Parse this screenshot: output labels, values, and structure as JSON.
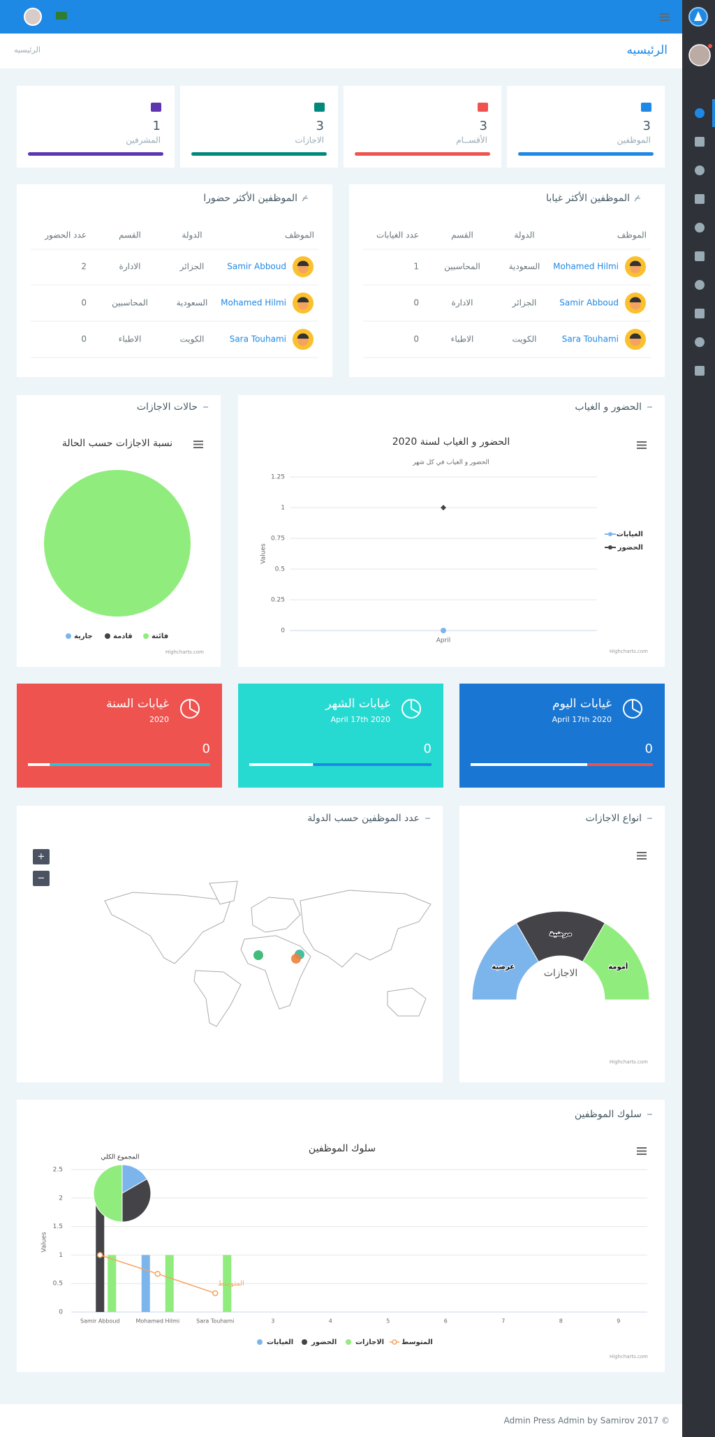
{
  "page_title": "الرئيسيه",
  "breadcrumb": "الرئيسيه",
  "stats": [
    {
      "value": 3,
      "label": "الموظفين",
      "color": "#1e88e5"
    },
    {
      "value": 3,
      "label": "الأقســام",
      "color": "#ef5350"
    },
    {
      "value": 3,
      "label": "الاجازات",
      "color": "#00897b"
    },
    {
      "value": 1,
      "label": "المشرفين",
      "color": "#5e35b1"
    }
  ],
  "absent_table": {
    "title": "الموظفين الأكثر غيابا",
    "columns": [
      "الموظف",
      "الدولة",
      "القسم",
      "عدد الغيابات"
    ],
    "rows": [
      [
        "Mohamed Hilmi",
        "السعودية",
        "المحاسبين",
        1
      ],
      [
        "Samir Abboud",
        "الجزائر",
        "الادارة",
        0
      ],
      [
        "Sara Touhami",
        "الكويت",
        "الاطباء",
        0
      ]
    ]
  },
  "present_table": {
    "title": "الموظفين الأكثر حضورا",
    "columns": [
      "الموظف",
      "الدولة",
      "القسم",
      "عدد الحضور"
    ],
    "rows": [
      [
        "Samir Abboud",
        "الجزائر",
        "الادارة",
        2
      ],
      [
        "Mohamed Hilmi",
        "السعودية",
        "المحاسبين",
        0
      ],
      [
        "Sara Touhami",
        "الكويت",
        "الاطباء",
        0
      ]
    ]
  },
  "leave_status_chart": {
    "type": "pie",
    "card_title": "حالات الاجازات",
    "title": "نسبة الاجازات حسب الحالة",
    "categories": [
      "جارية",
      "قادمة",
      "فائتة"
    ],
    "values": [
      0,
      0,
      3
    ],
    "colors": [
      "#7cb5ec",
      "#434348",
      "#90ed7d"
    ],
    "credits": "Highcharts.com"
  },
  "attendance_chart": {
    "type": "line",
    "card_title": "الحضور و الغياب",
    "title": "الحضور و الغياب لسنة 2020",
    "subtitle": "الحضور و الغياب في كل شهر",
    "y_label": "Values",
    "categories": [
      "April"
    ],
    "series": [
      {
        "name": "الغيابات",
        "color": "#7cb5ec",
        "values": [
          0
        ]
      },
      {
        "name": "الحضور",
        "color": "#434348",
        "values": [
          1
        ]
      }
    ],
    "ylim": [
      0,
      1.25
    ],
    "yticks": [
      0,
      0.25,
      0.5,
      0.75,
      1,
      1.25
    ],
    "grid": true,
    "credits": "Highcharts.com"
  },
  "absence_cards": [
    {
      "title": "غيابات اليوم",
      "date": "April 17th 2020",
      "value": 0,
      "color": "#1976d2"
    },
    {
      "title": "غيابات الشهر",
      "date": "April 17th 2020",
      "value": 0,
      "color": "#26dad2"
    },
    {
      "title": "غيابات السنة",
      "date": "2020",
      "value": 0,
      "color": "#ef5350"
    }
  ],
  "map_chart": {
    "type": "map",
    "title": "عدد الموظفين حسب الدولة",
    "zoom": [
      "+",
      "−"
    ],
    "categories": [
      "الجزائر",
      "السعودية",
      "الكويت"
    ],
    "values": [
      1,
      1,
      1
    ],
    "colors": [
      "#2fb56b",
      "#30b89a",
      "#f0803c"
    ]
  },
  "leave_types_chart": {
    "type": "semi-pie",
    "card_title": "انواع الاجازات",
    "center_label": "الاجازات",
    "categories": [
      "عرضية",
      "مرضية",
      "أمومة"
    ],
    "values": [
      1,
      1,
      1
    ],
    "colors": [
      "#7cb5ec",
      "#434348",
      "#90ed7d"
    ],
    "credits": "Highcharts.com"
  },
  "behaviour_chart": {
    "type": "combo",
    "card_title": "سلوك الموظفين",
    "title": "سلوك الموظفين",
    "y_label": "Values",
    "categories": [
      "Samir Abboud",
      "Mohamed Hilmi",
      "Sara Touhami",
      "3",
      "4",
      "5",
      "6",
      "7",
      "8",
      "9"
    ],
    "series": [
      {
        "name": "الغيابات",
        "color": "#7cb5ec",
        "type": "bar",
        "values": [
          0,
          1,
          0,
          null,
          null,
          null,
          null,
          null,
          null,
          null
        ]
      },
      {
        "name": "الحضور",
        "color": "#434348",
        "type": "bar",
        "values": [
          2,
          0,
          0,
          null,
          null,
          null,
          null,
          null,
          null,
          null
        ]
      },
      {
        "name": "الاجازات",
        "color": "#90ed7d",
        "type": "bar",
        "values": [
          1,
          1,
          1,
          null,
          null,
          null,
          null,
          null,
          null,
          null
        ]
      },
      {
        "name": "المتوسط",
        "color": "#f7a35c",
        "type": "line",
        "values": [
          1,
          0.67,
          0.33,
          null,
          null,
          null,
          null,
          null,
          null,
          null
        ]
      }
    ],
    "pie": {
      "title": "المجموع الكلي",
      "values": [
        1,
        2,
        3
      ]
    },
    "ylim": [
      0,
      2.5
    ],
    "yticks": [
      0,
      0.5,
      1,
      1.5,
      2,
      2.5
    ],
    "grid": true,
    "credits": "Highcharts.com"
  },
  "footer": "Admin Press Admin by Samirov 2017 ©"
}
